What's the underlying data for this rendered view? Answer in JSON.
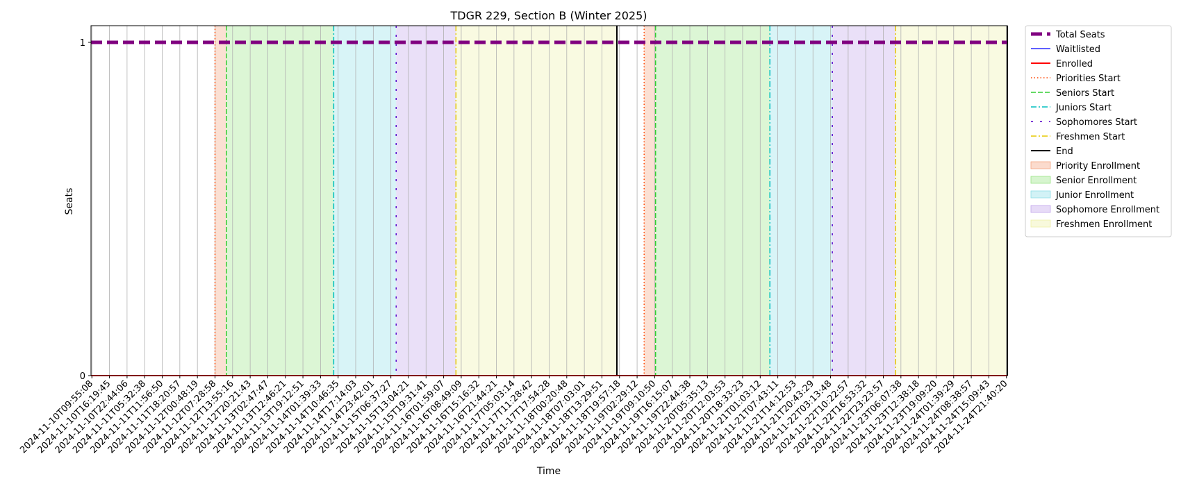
{
  "chart_data": {
    "type": "line",
    "title": "TDGR 229, Section B (Winter 2025)",
    "xlabel": "Time",
    "ylabel": "Seats",
    "ylim": [
      0,
      1.05
    ],
    "yticks": [
      0,
      1
    ],
    "grid": "vertical",
    "legend_placement": "outside-right",
    "x_ticks": [
      "2024-11-10T09:55:08",
      "2024-11-10T16:19:45",
      "2024-11-10T22:44:06",
      "2024-11-11T05:32:38",
      "2024-11-11T11:56:50",
      "2024-11-11T18:20:57",
      "2024-11-12T00:48:19",
      "2024-11-12T07:28:58",
      "2024-11-12T13:55:16",
      "2024-11-12T20:21:43",
      "2024-11-13T02:47:47",
      "2024-11-13T12:46:21",
      "2024-11-13T19:12:51",
      "2024-11-14T01:39:33",
      "2024-11-14T10:46:35",
      "2024-11-14T17:14:03",
      "2024-11-14T23:42:01",
      "2024-11-15T06:37:27",
      "2024-11-15T13:04:21",
      "2024-11-15T19:31:41",
      "2024-11-16T01:59:07",
      "2024-11-16T08:49:09",
      "2024-11-16T15:16:32",
      "2024-11-16T21:44:21",
      "2024-11-17T05:03:14",
      "2024-11-17T11:28:42",
      "2024-11-17T17:54:28",
      "2024-11-18T00:20:48",
      "2024-11-18T07:03:01",
      "2024-11-18T13:29:51",
      "2024-11-18T19:57:18",
      "2024-11-19T02:29:12",
      "2024-11-19T09:10:50",
      "2024-11-19T16:15:07",
      "2024-11-19T22:44:38",
      "2024-11-20T05:35:13",
      "2024-11-20T12:03:53",
      "2024-11-20T18:33:23",
      "2024-11-21T01:03:12",
      "2024-11-21T07:43:11",
      "2024-11-21T14:12:53",
      "2024-11-21T20:43:29",
      "2024-11-22T03:13:48",
      "2024-11-22T10:22:57",
      "2024-11-22T16:53:32",
      "2024-11-22T23:23:57",
      "2024-11-23T06:07:38",
      "2024-11-23T12:38:18",
      "2024-11-23T19:09:20",
      "2024-11-24T01:39:29",
      "2024-11-24T08:38:57",
      "2024-11-24T15:09:43",
      "2024-11-24T21:40:20"
    ],
    "x_range_index": [
      -0.05,
      52.05
    ],
    "series": [
      {
        "name": "Total Seats",
        "color": "#800080",
        "style": "dashed-thick",
        "values_constant": 1
      },
      {
        "name": "Waitlisted",
        "color": "#0000ff",
        "style": "solid-thin",
        "values_constant": 0
      },
      {
        "name": "Enrolled",
        "color": "#ff0000",
        "style": "solid",
        "values_constant": 0
      }
    ],
    "period_starts": [
      {
        "name": "Priorities Start",
        "color": "#ff4500",
        "style": "dotted",
        "index": 7.0
      },
      {
        "name": "Seniors Start",
        "color": "#32cd32",
        "style": "dashed",
        "index": 7.65
      },
      {
        "name": "Juniors Start",
        "color": "#00bfbf",
        "style": "dashdot",
        "index": 13.75
      },
      {
        "name": "Sophomores Start",
        "color": "#5500cc",
        "style": "loosedash",
        "index": 17.3
      },
      {
        "name": "Freshmen Start",
        "color": "#e6c800",
        "style": "dashdot",
        "index": 20.7
      },
      {
        "name": "End",
        "color": "#000000",
        "style": "solid",
        "index": 29.85
      },
      {
        "name": "Priorities Start",
        "color": "#ff4500",
        "style": "dotted",
        "index": 31.4
      },
      {
        "name": "Seniors Start",
        "color": "#32cd32",
        "style": "dashed",
        "index": 32.05
      },
      {
        "name": "Juniors Start",
        "color": "#00bfbf",
        "style": "dashdot",
        "index": 38.55
      },
      {
        "name": "Sophomores Start",
        "color": "#5500cc",
        "style": "loosedash",
        "index": 42.1
      },
      {
        "name": "Freshmen Start",
        "color": "#e6c800",
        "style": "dashdot",
        "index": 45.7
      },
      {
        "name": "End",
        "color": "#000000",
        "style": "solid",
        "index": 52.05
      }
    ],
    "enrollment_periods": [
      {
        "name": "Priority Enrollment",
        "color": "#f4a582",
        "from": 7.0,
        "to": 7.65
      },
      {
        "name": "Senior Enrollment",
        "color": "#9be587",
        "from": 7.65,
        "to": 13.75
      },
      {
        "name": "Junior Enrollment",
        "color": "#8fdfe8",
        "from": 13.75,
        "to": 17.3
      },
      {
        "name": "Sophomore Enrollment",
        "color": "#c3a6ec",
        "from": 17.3,
        "to": 20.7
      },
      {
        "name": "Freshmen Enrollment",
        "color": "#eef0a8",
        "from": 20.7,
        "to": 29.85
      },
      {
        "name": "Priority Enrollment",
        "color": "#f4a582",
        "from": 31.4,
        "to": 32.05
      },
      {
        "name": "Senior Enrollment",
        "color": "#9be587",
        "from": 32.05,
        "to": 38.55
      },
      {
        "name": "Junior Enrollment",
        "color": "#8fdfe8",
        "from": 38.55,
        "to": 42.1
      },
      {
        "name": "Sophomore Enrollment",
        "color": "#c3a6ec",
        "from": 42.1,
        "to": 45.7
      },
      {
        "name": "Freshmen Enrollment",
        "color": "#eef0a8",
        "from": 45.7,
        "to": 52.05
      }
    ],
    "legend": [
      {
        "label": "Total Seats",
        "kind": "line",
        "color": "#800080",
        "style": "dashed-thick"
      },
      {
        "label": "Waitlisted",
        "kind": "line",
        "color": "#0000ff",
        "style": "solid-thin"
      },
      {
        "label": "Enrolled",
        "kind": "line",
        "color": "#ff0000",
        "style": "solid"
      },
      {
        "label": "Priorities Start",
        "kind": "line",
        "color": "#ff4500",
        "style": "dotted"
      },
      {
        "label": "Seniors Start",
        "kind": "line",
        "color": "#32cd32",
        "style": "dashed"
      },
      {
        "label": "Juniors Start",
        "kind": "line",
        "color": "#00bfbf",
        "style": "dashdot"
      },
      {
        "label": "Sophomores Start",
        "kind": "line",
        "color": "#5500cc",
        "style": "loosedash"
      },
      {
        "label": "Freshmen Start",
        "kind": "line",
        "color": "#e6c800",
        "style": "dashdot"
      },
      {
        "label": "End",
        "kind": "line",
        "color": "#000000",
        "style": "solid"
      },
      {
        "label": "Priority Enrollment",
        "kind": "patch",
        "color": "#f4a582"
      },
      {
        "label": "Senior Enrollment",
        "kind": "patch",
        "color": "#9be587"
      },
      {
        "label": "Junior Enrollment",
        "kind": "patch",
        "color": "#8fdfe8"
      },
      {
        "label": "Sophomore Enrollment",
        "kind": "patch",
        "color": "#c3a6ec"
      },
      {
        "label": "Freshmen Enrollment",
        "kind": "patch",
        "color": "#eef0a8"
      }
    ]
  }
}
